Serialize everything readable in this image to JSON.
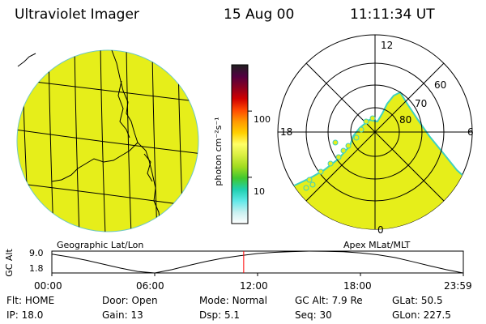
{
  "header": {
    "instrument": "Ultraviolet Imager",
    "date": "15 Aug 00",
    "time": "11:11:34 UT"
  },
  "panels": {
    "left_label": "Geographic Lat/Lon",
    "right_label": "Apex MLat/MLT"
  },
  "colors": {
    "image_fill": "#e6ee1a",
    "map_line": "#000000",
    "marker_red": "#ff0000",
    "edge_cyan": "#3fd0c0"
  },
  "colorbar": {
    "label": "photon cm⁻²s⁻¹",
    "ticks": [
      {
        "value": 100,
        "label": "100"
      },
      {
        "value": 10,
        "label": "10"
      }
    ],
    "scale": "log",
    "stops": [
      "#202020",
      "#500040",
      "#8a0020",
      "#d00000",
      "#ff4a00",
      "#ff9900",
      "#ffd000",
      "#ffff66",
      "#d8ee40",
      "#a0dc20",
      "#40c830",
      "#20d0b0",
      "#60e8e8",
      "#c8f0f0",
      "#ffffff"
    ]
  },
  "polar": {
    "mlt_labels": [
      "12",
      "18",
      "6",
      "0"
    ],
    "lat_labels": [
      "60",
      "70",
      "80"
    ],
    "lat_circles": [
      60,
      70,
      80
    ]
  },
  "chart_data": {
    "type": "line",
    "title": "",
    "xlabel": "",
    "ylabel": "GC Alt",
    "x_ticks": [
      "00:00",
      "06:00",
      "12:00",
      "18:00",
      "23:59"
    ],
    "y_ticks": [
      "9.0",
      "1.8"
    ],
    "ylim": [
      1.8,
      9.0
    ],
    "x": [
      0,
      1,
      2,
      3,
      4,
      5,
      6,
      7,
      8,
      9,
      10,
      11,
      12,
      13,
      14,
      15,
      16,
      17,
      18,
      19,
      20,
      21,
      22,
      23,
      23.98
    ],
    "series": [
      {
        "values": [
          8.0,
          7.1,
          6.0,
          4.7,
          3.4,
          2.3,
          1.8,
          2.9,
          4.3,
          5.6,
          6.7,
          7.5,
          8.2,
          8.6,
          8.85,
          9.0,
          8.95,
          8.8,
          8.4,
          7.8,
          6.9,
          5.6,
          4.2,
          2.9,
          1.8
        ]
      }
    ],
    "current_time": 11.19,
    "current_time_color": "#ff0000"
  },
  "status": {
    "row1": [
      {
        "label": "Flt:",
        "value": "HOME"
      },
      {
        "label": "Door:",
        "value": "Open"
      },
      {
        "label": "Mode:",
        "value": "Normal"
      },
      {
        "label": "GC Alt:",
        "value": "7.9 Re"
      },
      {
        "label": "GLat:",
        "value": "50.5"
      }
    ],
    "row2": [
      {
        "label": "IP:",
        "value": "18.0"
      },
      {
        "label": "Gain:",
        "value": "13"
      },
      {
        "label": "Dsp:",
        "value": "5.1"
      },
      {
        "label": "Seq:",
        "value": "30"
      },
      {
        "label": "GLon:",
        "value": "227.5"
      }
    ]
  }
}
